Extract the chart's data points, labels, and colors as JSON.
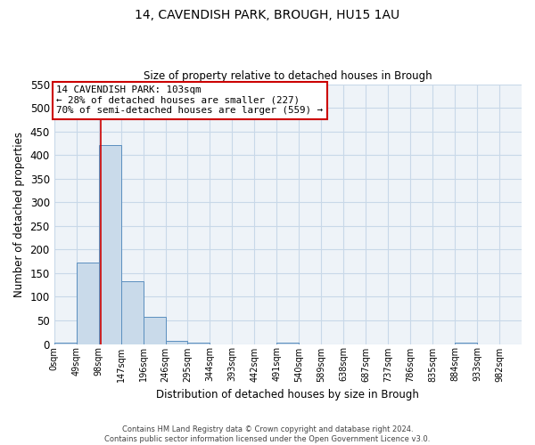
{
  "title": "14, CAVENDISH PARK, BROUGH, HU15 1AU",
  "subtitle": "Size of property relative to detached houses in Brough",
  "xlabel": "Distribution of detached houses by size in Brough",
  "ylabel": "Number of detached properties",
  "bin_labels": [
    "0sqm",
    "49sqm",
    "98sqm",
    "147sqm",
    "196sqm",
    "246sqm",
    "295sqm",
    "344sqm",
    "393sqm",
    "442sqm",
    "491sqm",
    "540sqm",
    "589sqm",
    "638sqm",
    "687sqm",
    "737sqm",
    "786sqm",
    "835sqm",
    "884sqm",
    "933sqm",
    "982sqm"
  ],
  "bar_values": [
    3,
    173,
    421,
    132,
    57,
    6,
    3,
    0,
    0,
    0,
    3,
    0,
    0,
    0,
    0,
    0,
    0,
    0,
    3,
    0,
    0
  ],
  "bar_color": "#c9daea",
  "bar_edge_color": "#5b8fbf",
  "grid_color": "#c8d8e8",
  "background_color": "#eef3f8",
  "vline_x": 103,
  "vline_color": "#cc0000",
  "annotation_line1": "14 CAVENDISH PARK: 103sqm",
  "annotation_line2": "← 28% of detached houses are smaller (227)",
  "annotation_line3": "70% of semi-detached houses are larger (559) →",
  "annotation_box_color": "#cc0000",
  "ylim": [
    0,
    550
  ],
  "yticks": [
    0,
    50,
    100,
    150,
    200,
    250,
    300,
    350,
    400,
    450,
    500,
    550
  ],
  "footer_text": "Contains HM Land Registry data © Crown copyright and database right 2024.\nContains public sector information licensed under the Open Government Licence v3.0.",
  "bin_width": 49
}
